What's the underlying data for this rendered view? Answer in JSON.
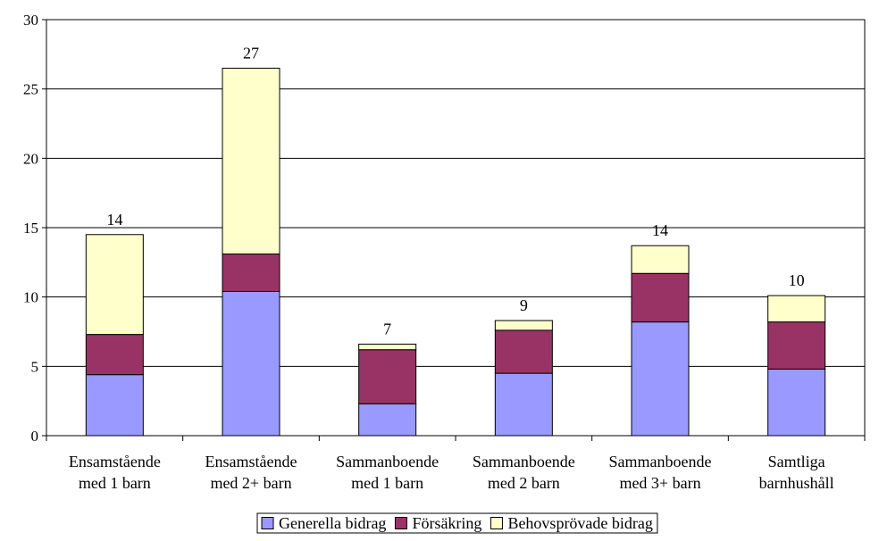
{
  "chart_data": {
    "type": "bar",
    "stacked": true,
    "categories": [
      [
        "Ensamstående",
        "med 1 barn"
      ],
      [
        "Ensamstående",
        "med 2+ barn"
      ],
      [
        "Sammanboende",
        "med 1 barn"
      ],
      [
        "Sammanboende",
        "med 2 barn"
      ],
      [
        "Sammanboende",
        "med 3+ barn"
      ],
      [
        "Samtliga",
        "barnhushåll"
      ]
    ],
    "series": [
      {
        "name": "Generella bidrag",
        "color": "#9999ff",
        "values": [
          4.4,
          10.4,
          2.3,
          4.5,
          8.2,
          4.8
        ]
      },
      {
        "name": "Försäkring",
        "color": "#993366",
        "values": [
          2.9,
          2.7,
          3.9,
          3.1,
          3.5,
          3.4
        ]
      },
      {
        "name": "Behovsprövade bidrag",
        "color": "#ffffcc",
        "values": [
          7.2,
          13.4,
          0.4,
          0.7,
          2.0,
          1.9
        ]
      }
    ],
    "totals_labels": [
      "14",
      "27",
      "7",
      "9",
      "14",
      "10"
    ],
    "ylim": [
      0,
      30
    ],
    "yticks": [
      0,
      5,
      10,
      15,
      20,
      25,
      30
    ],
    "grid": true,
    "legend_position": "bottom"
  }
}
